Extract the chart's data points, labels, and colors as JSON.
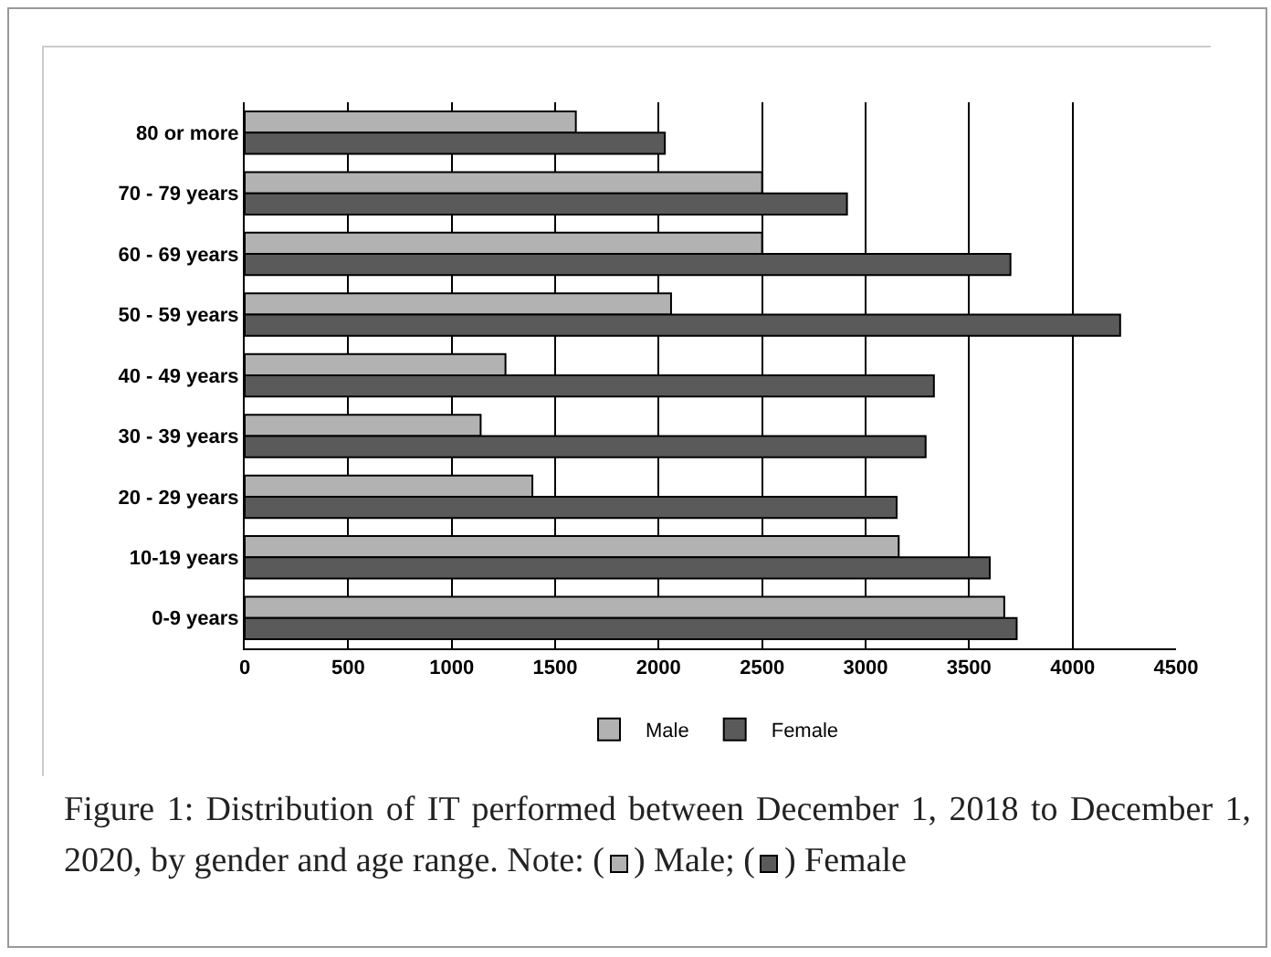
{
  "chart_data": {
    "type": "bar",
    "orientation": "horizontal",
    "categories": [
      "80 or more",
      "70 - 79 years",
      "60 - 69 years",
      "50 - 59 years",
      "40 - 49 years",
      "30 - 39 years",
      "20 - 29 years",
      "10-19 years",
      "0-9 years"
    ],
    "series": [
      {
        "name": "Male",
        "color": "#b2b2b2",
        "values": [
          1600,
          2500,
          2500,
          2060,
          1260,
          1140,
          1390,
          3160,
          3670
        ]
      },
      {
        "name": "Female",
        "color": "#5a5a5a",
        "values": [
          2030,
          2910,
          3700,
          4230,
          3330,
          3290,
          3150,
          3600,
          3730
        ]
      }
    ],
    "xlim": [
      0,
      4500
    ],
    "xticks": [
      0,
      500,
      1000,
      1500,
      2000,
      2500,
      3000,
      3500,
      4000,
      4500
    ],
    "grid": "x",
    "legend": "bottom",
    "annotations": [
      "Figure 1: Distribution of IT performed between December 1, 2018 to December 1, 2020, by gender and age range. Note: (",
      ") Male; (",
      ") Female"
    ]
  }
}
